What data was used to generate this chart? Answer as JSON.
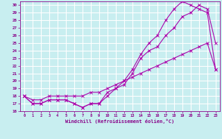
{
  "xlabel": "Windchill (Refroidissement éolien,°C)",
  "bg_color": "#c8eef0",
  "grid_color": "#ffffff",
  "line_color": "#aa00aa",
  "xlim": [
    -0.5,
    23.5
  ],
  "ylim": [
    16,
    30.5
  ],
  "xticks": [
    0,
    1,
    2,
    3,
    4,
    5,
    6,
    7,
    8,
    9,
    10,
    11,
    12,
    13,
    14,
    15,
    16,
    17,
    18,
    19,
    20,
    21,
    22,
    23
  ],
  "yticks": [
    16,
    17,
    18,
    19,
    20,
    21,
    22,
    23,
    24,
    25,
    26,
    27,
    28,
    29,
    30
  ],
  "line1_x": [
    0,
    1,
    2,
    3,
    4,
    5,
    6,
    7,
    8,
    9,
    10,
    11,
    12,
    13,
    14,
    15,
    16,
    17,
    18,
    19,
    20,
    21,
    22,
    23
  ],
  "line1_y": [
    18,
    17,
    17,
    17.5,
    17.5,
    17.5,
    17,
    16.5,
    17,
    17,
    18.5,
    19,
    19.5,
    21,
    23,
    24,
    24.5,
    26,
    27,
    28.5,
    29,
    30,
    29.5,
    25
  ],
  "line2_x": [
    0,
    1,
    2,
    3,
    4,
    5,
    6,
    7,
    8,
    9,
    10,
    11,
    12,
    13,
    14,
    15,
    16,
    17,
    18,
    19,
    20,
    21,
    22,
    23
  ],
  "line2_y": [
    18,
    17,
    17,
    17.5,
    17.5,
    17.5,
    17,
    16.5,
    17,
    17,
    18,
    19,
    20,
    21.5,
    23.5,
    25,
    26,
    28,
    29.5,
    30.5,
    30,
    29.5,
    29,
    21.5
  ],
  "line3_x": [
    0,
    1,
    2,
    3,
    4,
    5,
    6,
    7,
    8,
    9,
    10,
    11,
    12,
    13,
    14,
    15,
    16,
    17,
    18,
    19,
    20,
    21,
    22,
    23
  ],
  "line3_y": [
    18,
    17.5,
    17.5,
    18,
    18,
    18,
    18,
    18,
    18.5,
    18.5,
    19,
    19.5,
    20,
    20.5,
    21,
    21.5,
    22,
    22.5,
    23,
    23.5,
    24,
    24.5,
    25,
    21.5
  ]
}
